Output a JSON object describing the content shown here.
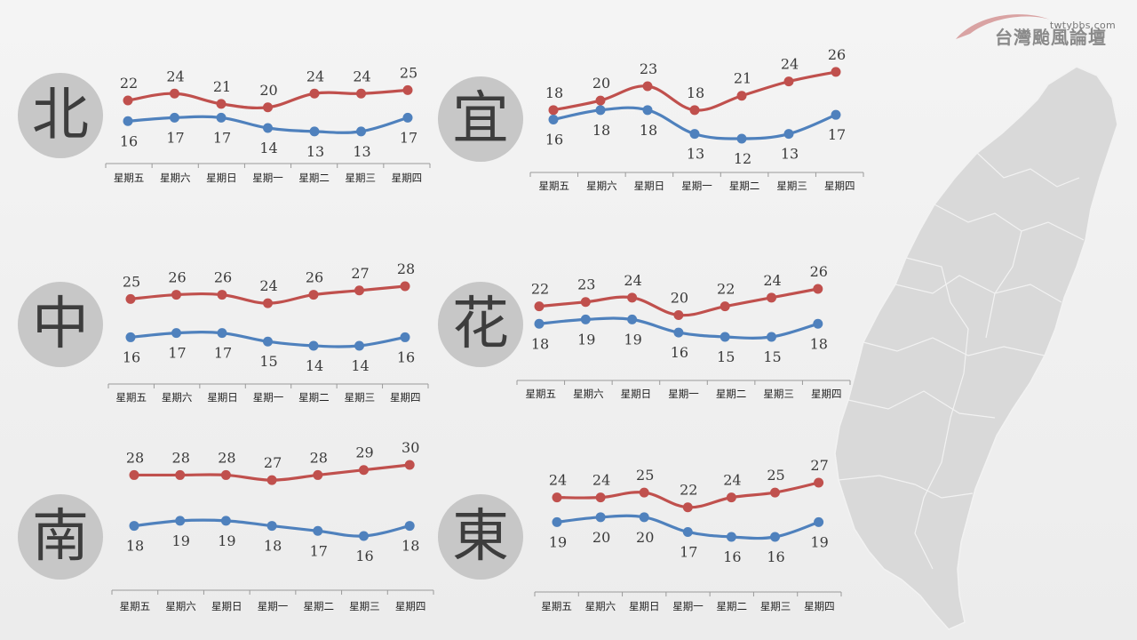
{
  "brand": {
    "site": "twtybbs.com",
    "name": "台灣颱風論壇"
  },
  "colors": {
    "high": "#c0504d",
    "low": "#4f81bd",
    "badge": "#c7c7c7",
    "map": "#d8d8d8"
  },
  "chart_data": [
    {
      "type": "line",
      "region": "北",
      "categories": [
        "星期五",
        "星期六",
        "星期日",
        "星期一",
        "星期二",
        "星期三",
        "星期四"
      ],
      "series": [
        {
          "values": [
            22,
            24,
            21,
            20,
            24,
            24,
            25
          ]
        },
        {
          "values": [
            16,
            17,
            17,
            14,
            13,
            13,
            17
          ]
        }
      ]
    },
    {
      "type": "line",
      "region": "宜",
      "categories": [
        "星期五",
        "星期六",
        "星期日",
        "星期一",
        "星期二",
        "星期三",
        "星期四"
      ],
      "series": [
        {
          "values": [
            18,
            20,
            23,
            18,
            21,
            24,
            26
          ]
        },
        {
          "values": [
            16,
            18,
            18,
            13,
            12,
            13,
            17
          ]
        }
      ]
    },
    {
      "type": "line",
      "region": "中",
      "categories": [
        "星期五",
        "星期六",
        "星期日",
        "星期一",
        "星期二",
        "星期三",
        "星期四"
      ],
      "series": [
        {
          "values": [
            25,
            26,
            26,
            24,
            26,
            27,
            28
          ]
        },
        {
          "values": [
            16,
            17,
            17,
            15,
            14,
            14,
            16
          ]
        }
      ]
    },
    {
      "type": "line",
      "region": "花",
      "categories": [
        "星期五",
        "星期六",
        "星期日",
        "星期一",
        "星期二",
        "星期三",
        "星期四"
      ],
      "series": [
        {
          "values": [
            22,
            23,
            24,
            20,
            22,
            24,
            26
          ]
        },
        {
          "values": [
            18,
            19,
            19,
            16,
            15,
            15,
            18
          ]
        }
      ]
    },
    {
      "type": "line",
      "region": "南",
      "categories": [
        "星期五",
        "星期六",
        "星期日",
        "星期一",
        "星期二",
        "星期三",
        "星期四"
      ],
      "series": [
        {
          "values": [
            28,
            28,
            28,
            27,
            28,
            29,
            30
          ]
        },
        {
          "values": [
            18,
            19,
            19,
            18,
            17,
            16,
            18
          ]
        }
      ]
    },
    {
      "type": "line",
      "region": "東",
      "categories": [
        "星期五",
        "星期六",
        "星期日",
        "星期一",
        "星期二",
        "星期三",
        "星期四"
      ],
      "series": [
        {
          "values": [
            24,
            24,
            25,
            22,
            24,
            25,
            27
          ]
        },
        {
          "values": [
            19,
            20,
            20,
            17,
            16,
            16,
            19
          ]
        }
      ]
    }
  ]
}
